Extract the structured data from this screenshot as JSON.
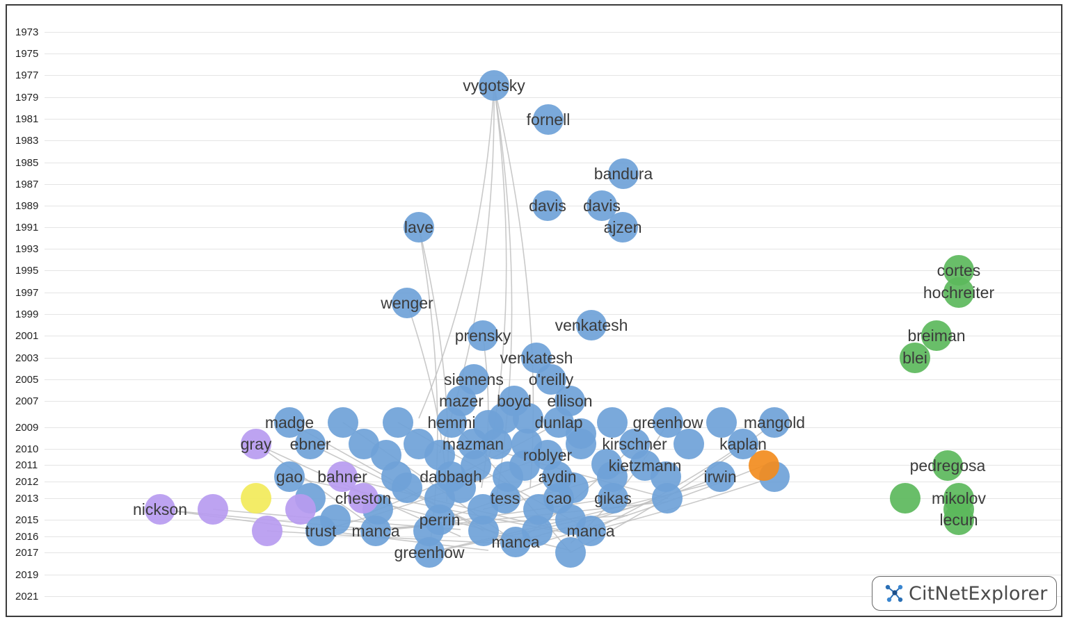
{
  "colors": {
    "cluster_blue": "#6fa2d8",
    "cluster_green": "#5cb85c",
    "cluster_purple": "#b79bf0",
    "cluster_yellow": "#f2ea5a",
    "cluster_orange": "#f28c1e",
    "edge": "#bfbfbf",
    "grid": "#e4e4e4"
  },
  "years": [
    "1973",
    "1975",
    "1977",
    "1979",
    "1981",
    "1983",
    "1985",
    "1987",
    "1989",
    "1991",
    "1993",
    "1995",
    "1997",
    "1999",
    "2001",
    "2003",
    "2005",
    "2007",
    "2009",
    "2010",
    "2011",
    "2012",
    "2013",
    "2015",
    "2016",
    "2017",
    "2019",
    "2021"
  ],
  "logo": {
    "text": "CitNetExplorer",
    "icon": "network-icon"
  },
  "nodes": [
    {
      "label": "vygotsky",
      "year": "1977",
      "cluster": "blue"
    },
    {
      "label": "fornell",
      "year": "1981",
      "cluster": "blue"
    },
    {
      "label": "bandura",
      "year": "1986",
      "cluster": "blue"
    },
    {
      "label": "davis",
      "year": "1989",
      "cluster": "blue"
    },
    {
      "label": "davis",
      "year": "1989",
      "cluster": "blue"
    },
    {
      "label": "ajzen",
      "year": "1991",
      "cluster": "blue"
    },
    {
      "label": "lave",
      "year": "1991",
      "cluster": "blue"
    },
    {
      "label": "wenger",
      "year": "1998",
      "cluster": "blue"
    },
    {
      "label": "venkatesh",
      "year": "2000",
      "cluster": "blue"
    },
    {
      "label": "prensky",
      "year": "2001",
      "cluster": "blue"
    },
    {
      "label": "venkatesh",
      "year": "2003",
      "cluster": "blue"
    },
    {
      "label": "siemens",
      "year": "2005",
      "cluster": "blue"
    },
    {
      "label": "o'reilly",
      "year": "2005",
      "cluster": "blue"
    },
    {
      "label": "mazer",
      "year": "2007",
      "cluster": "blue"
    },
    {
      "label": "boyd",
      "year": "2007",
      "cluster": "blue"
    },
    {
      "label": "ellison",
      "year": "2007",
      "cluster": "blue"
    },
    {
      "label": "madge",
      "year": "2009",
      "cluster": "blue"
    },
    {
      "label": "hemmi",
      "year": "2009",
      "cluster": "blue"
    },
    {
      "label": "dunlap",
      "year": "2009",
      "cluster": "blue"
    },
    {
      "label": "greenhow",
      "year": "2009",
      "cluster": "blue"
    },
    {
      "label": "mangold",
      "year": "2009",
      "cluster": "blue"
    },
    {
      "label": "ebner",
      "year": "2010",
      "cluster": "blue"
    },
    {
      "label": "mazman",
      "year": "2010",
      "cluster": "blue"
    },
    {
      "label": "kirschner",
      "year": "2010",
      "cluster": "blue"
    },
    {
      "label": "kaplan",
      "year": "2010",
      "cluster": "blue"
    },
    {
      "label": "roblyer",
      "year": "2010",
      "cluster": "blue"
    },
    {
      "label": "kietzmann",
      "year": "2011",
      "cluster": "blue"
    },
    {
      "label": "gao",
      "year": "2012",
      "cluster": "blue"
    },
    {
      "label": "dabbagh",
      "year": "2012",
      "cluster": "blue"
    },
    {
      "label": "aydin",
      "year": "2012",
      "cluster": "blue"
    },
    {
      "label": "irwin",
      "year": "2012",
      "cluster": "blue"
    },
    {
      "label": "tess",
      "year": "2013",
      "cluster": "blue"
    },
    {
      "label": "cao",
      "year": "2013",
      "cluster": "blue"
    },
    {
      "label": "gikas",
      "year": "2013",
      "cluster": "blue"
    },
    {
      "label": "perrin",
      "year": "2015",
      "cluster": "blue"
    },
    {
      "label": "trust",
      "year": "2016",
      "cluster": "blue"
    },
    {
      "label": "manca",
      "year": "2016",
      "cluster": "blue"
    },
    {
      "label": "manca",
      "year": "2016",
      "cluster": "blue"
    },
    {
      "label": "manca",
      "year": "2017",
      "cluster": "blue"
    },
    {
      "label": "greenhow",
      "year": "2017",
      "cluster": "blue"
    },
    {
      "label": "gray",
      "year": "2010",
      "cluster": "purple"
    },
    {
      "label": "bahner",
      "year": "2012",
      "cluster": "purple"
    },
    {
      "label": "cheston",
      "year": "2013",
      "cluster": "purple"
    },
    {
      "label": "nickson",
      "year": "2014",
      "cluster": "purple"
    },
    {
      "label": "cortes",
      "year": "1995",
      "cluster": "green"
    },
    {
      "label": "hochreiter",
      "year": "1997",
      "cluster": "green"
    },
    {
      "label": "breiman",
      "year": "2001",
      "cluster": "green"
    },
    {
      "label": "blei",
      "year": "2003",
      "cluster": "green"
    },
    {
      "label": "pedregosa",
      "year": "2011",
      "cluster": "green"
    },
    {
      "label": "mikolov",
      "year": "2013",
      "cluster": "green"
    },
    {
      "label": "lecun",
      "year": "2015",
      "cluster": "green"
    }
  ]
}
